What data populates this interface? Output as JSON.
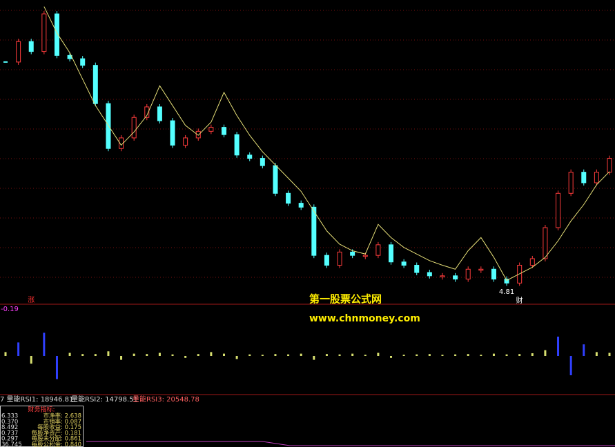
{
  "chart_data": [
    {
      "type": "candlestick",
      "series": [
        {
          "name": "close",
          "values": [
            8.26,
            8.57,
            8.42,
            8.99,
            8.36,
            8.31,
            8.21,
            7.63,
            6.95,
            7.11,
            7.42,
            7.58,
            7.37,
            7.0,
            7.11,
            7.21,
            7.27,
            7.16,
            6.85,
            6.8,
            6.69,
            6.27,
            6.12,
            6.06,
            5.33,
            5.18,
            5.38,
            5.33,
            5.33,
            5.49,
            5.23,
            5.18,
            5.07,
            5.02,
            5.02,
            4.97,
            5.12,
            5.12,
            4.97,
            4.91,
            5.18,
            5.28,
            5.75,
            6.27,
            6.59,
            6.43,
            6.59,
            6.8
          ]
        },
        {
          "name": "stop",
          "color": "#e6df78",
          "values": [
            null,
            null,
            null,
            9.1,
            8.7,
            8.4,
            8.0,
            7.6,
            7.3,
            7.0,
            7.2,
            7.45,
            7.9,
            7.6,
            7.3,
            7.15,
            7.35,
            7.8,
            7.45,
            7.15,
            6.9,
            6.7,
            6.5,
            6.3,
            6.0,
            5.7,
            5.5,
            5.4,
            5.35,
            5.8,
            5.6,
            5.45,
            5.35,
            5.25,
            5.18,
            5.12,
            5.4,
            5.6,
            5.3,
            4.95,
            5.05,
            5.15,
            5.3,
            5.55,
            5.85,
            6.1,
            6.4,
            6.6
          ]
        }
      ],
      "up_color": "#ff3c3c",
      "down_color": "#54ffff",
      "ylim": [
        4.6,
        9.2
      ],
      "annotations": [
        {
          "text": "涨",
          "x": 2,
          "color": "#ff3030"
        },
        {
          "text": "4.81",
          "x": 39,
          "color": "#ffffff"
        },
        {
          "text": "财",
          "x": 40,
          "color": "#ffffff"
        }
      ]
    },
    {
      "type": "bar",
      "label": "-0.19",
      "color": "#d8e070",
      "values": [
        0.1,
        0.35,
        -0.2,
        0.6,
        -0.6,
        0.08,
        0.05,
        0.05,
        0.12,
        -0.1,
        0.06,
        0.05,
        0.08,
        0.04,
        -0.05,
        0.05,
        0.1,
        0.06,
        -0.08,
        0.04,
        0.03,
        0.05,
        0.04,
        0.06,
        -0.1,
        0.05,
        0.04,
        0.06,
        0.03,
        0.08,
        -0.05,
        0.03,
        0.04,
        0.05,
        0.03,
        0.04,
        0.05,
        0.03,
        0.06,
        0.04,
        0.05,
        0.07,
        0.15,
        0.5,
        -0.5,
        0.3,
        0.1,
        0.08
      ],
      "ylim": [
        -1,
        1
      ]
    }
  ],
  "watermark": {
    "name": "第一股票公式网",
    "url": "www.chnmoney.com"
  },
  "rsi_labels": [
    "7 量能RSI1: 18946.81",
    "量能RSI2: 14798.51",
    "量能RSI3: 20548.78"
  ],
  "finance_box": {
    "title": "财务指标:",
    "rows": [
      [
        "6.333",
        "市净率: 2.638"
      ],
      [
        "0.370",
        "市销率: 0.087"
      ],
      [
        "8.492",
        "每股收益: 0.175"
      ],
      [
        "0.737",
        "每股净资产: 0.181"
      ],
      [
        "0.297",
        "每股未分配: 0.861"
      ],
      [
        "36.745",
        "每股公积金: 0.840"
      ]
    ]
  }
}
